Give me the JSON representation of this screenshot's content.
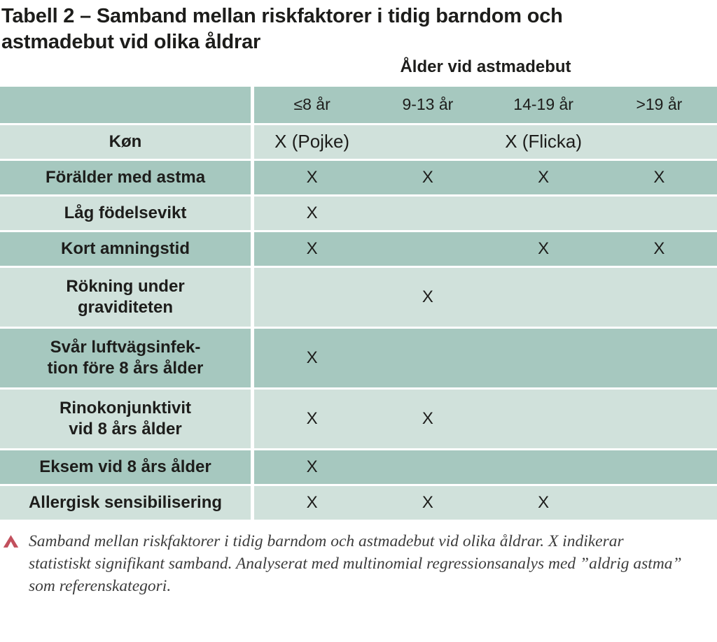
{
  "title": "Tabell 2 – Samband mellan riskfaktorer i tidig barndom och astmadebut vid olika åldrar",
  "table": {
    "super_header": "Ålder vid astmadebut",
    "column_headers": [
      "≤8 år",
      "9-13 år",
      "14-19 år",
      ">19 år"
    ],
    "sex_row": {
      "label": "Køn",
      "boy": "X (Pojke)",
      "girl": "X (Flicka)"
    },
    "rows": [
      {
        "label": "Förälder med astma",
        "shade": "dark",
        "lines": 1,
        "cells": [
          "X",
          "X",
          "X",
          "X"
        ]
      },
      {
        "label": "Låg födelsevikt",
        "shade": "light",
        "lines": 1,
        "cells": [
          "X",
          "",
          "",
          ""
        ]
      },
      {
        "label": "Kort amningstid",
        "shade": "dark",
        "lines": 1,
        "cells": [
          "X",
          "",
          "X",
          "X"
        ]
      },
      {
        "label": "Rökning under\ngraviditeten",
        "shade": "light",
        "lines": 2,
        "cells": [
          "",
          "X",
          "",
          ""
        ]
      },
      {
        "label": "Svår luftvägsinfek-\ntion före 8 års ålder",
        "shade": "dark",
        "lines": 2,
        "cells": [
          "X",
          "",
          "",
          ""
        ]
      },
      {
        "label": "Rinokonjunktivit\nvid 8 års ålder",
        "shade": "light",
        "lines": 2,
        "cells": [
          "X",
          "X",
          "",
          ""
        ]
      },
      {
        "label": "Eksem vid 8 års ålder",
        "shade": "dark",
        "lines": 1,
        "cells": [
          "X",
          "",
          "",
          ""
        ]
      },
      {
        "label": "Allergisk sensibilisering",
        "shade": "light",
        "lines": 1,
        "cells": [
          "X",
          "X",
          "X",
          ""
        ]
      }
    ],
    "significance_mark": "X"
  },
  "caption": {
    "marker_icon": "caret-up",
    "text": "Samband mellan riskfaktorer i tidig barndom och astmadebut vid olika åldrar. X indikerar statistiskt signifikant samband. Analyserat med multinomial regressionsanalys med ”aldrig astma” som referenskategori."
  },
  "colors": {
    "row_dark": "#a6c8bf",
    "row_light": "#d0e1db",
    "marker_red": "#c2505d",
    "text_dark": "#1d1d1b",
    "caption_text": "#3c3c3c"
  }
}
